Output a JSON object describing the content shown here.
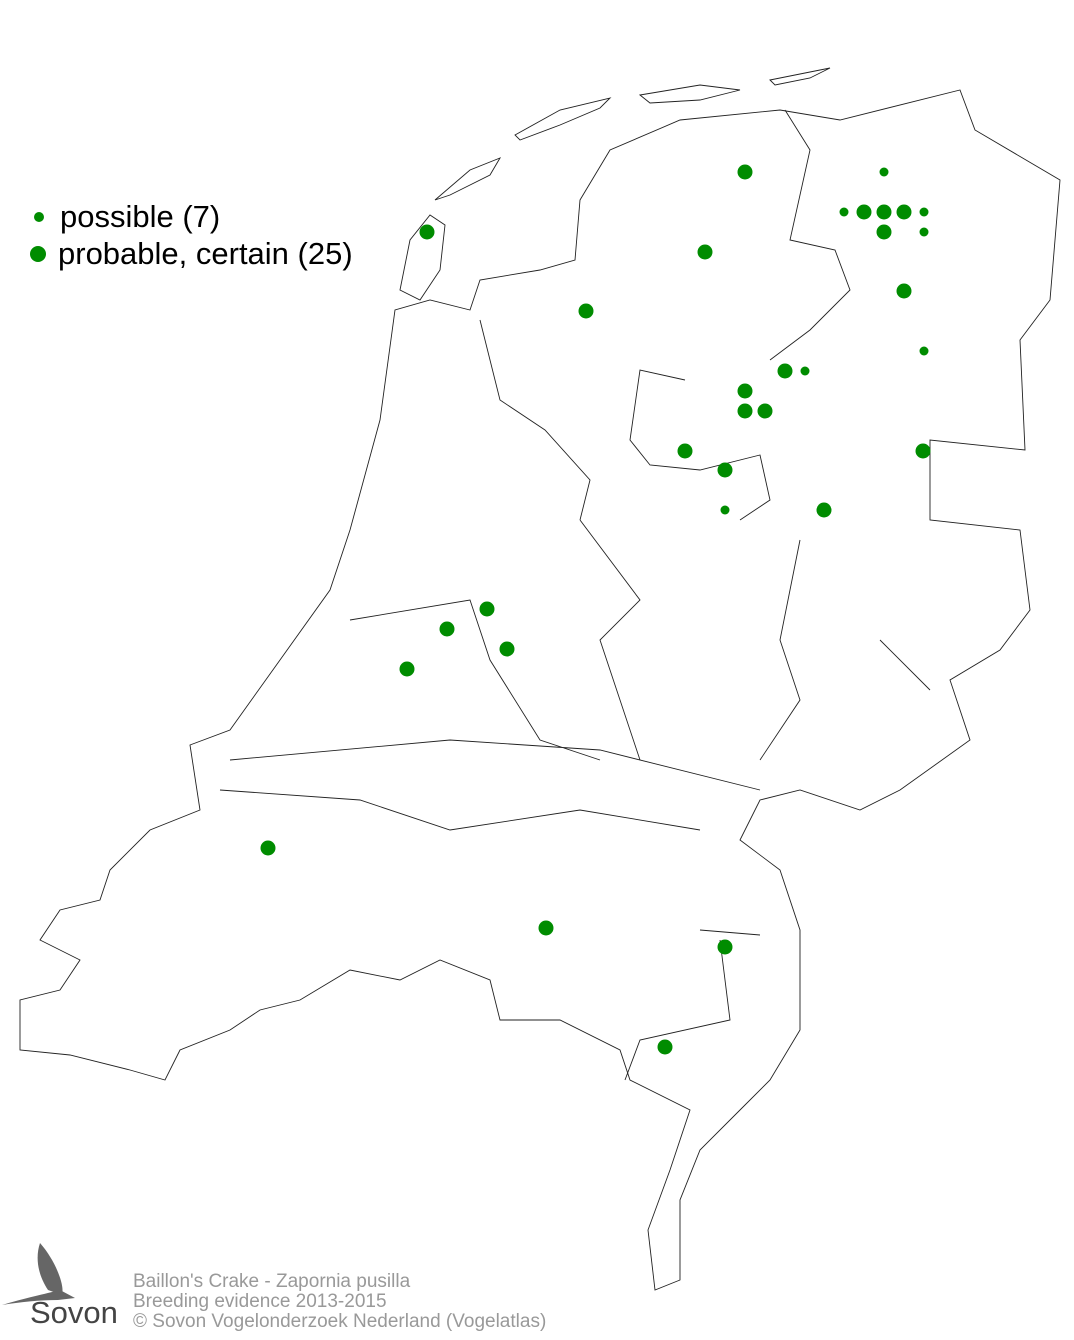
{
  "legend": {
    "items": [
      {
        "label": "possible (7)",
        "size": "small",
        "color": "#008c00"
      },
      {
        "label": "probable, certain (25)",
        "size": "large",
        "color": "#008c00"
      }
    ]
  },
  "footer": {
    "species": "Baillon's Crake - Zapornia pusilla",
    "subtitle": "Breeding evidence 2013-2015",
    "copyright": "© Sovon Vogelonderzoek Nederland (Vogelatlas)"
  },
  "logo": {
    "text": "Sovon"
  },
  "colors": {
    "dot": "#008c00",
    "border": "#222222"
  }
}
